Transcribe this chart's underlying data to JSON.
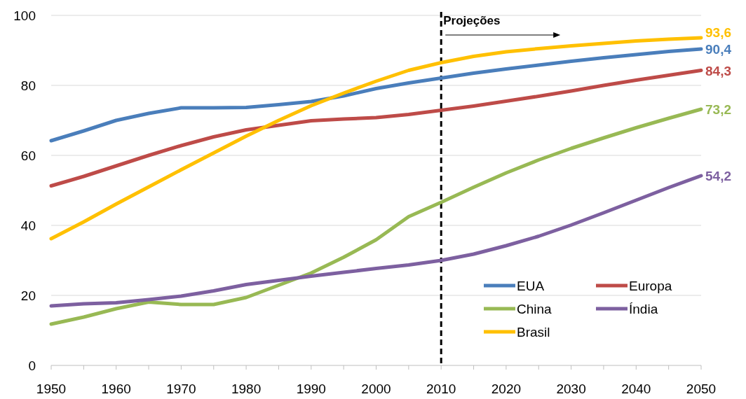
{
  "chart_data": {
    "type": "line",
    "x": [
      1950,
      1955,
      1960,
      1965,
      1970,
      1975,
      1980,
      1985,
      1990,
      1995,
      2000,
      2005,
      2010,
      2015,
      2020,
      2025,
      2030,
      2035,
      2040,
      2045,
      2050
    ],
    "series": [
      {
        "name": "EUA",
        "color": "#4a7ebb",
        "values": [
          64.2,
          67,
          70,
          72,
          73.6,
          73.6,
          73.7,
          74.5,
          75.4,
          77,
          79.1,
          80.7,
          82.1,
          83.5,
          84.7,
          85.8,
          86.9,
          87.9,
          88.8,
          89.7,
          90.4
        ]
      },
      {
        "name": "Europa",
        "color": "#be4b48",
        "values": [
          51.3,
          54,
          57,
          60,
          62.8,
          65.3,
          67.3,
          68.6,
          69.9,
          70.4,
          70.8,
          71.7,
          72.9,
          74.1,
          75.5,
          76.9,
          78.4,
          80,
          81.5,
          82.9,
          84.3
        ]
      },
      {
        "name": "China",
        "color": "#98b954",
        "values": [
          11.8,
          13.8,
          16.2,
          18.1,
          17.4,
          17.4,
          19.4,
          22.9,
          26.4,
          30.9,
          35.9,
          42.5,
          46.6,
          50.9,
          55,
          58.7,
          62,
          65,
          67.9,
          70.6,
          73.2
        ]
      },
      {
        "name": "Índia",
        "color": "#7d60a0",
        "values": [
          17,
          17.6,
          17.9,
          18.8,
          19.8,
          21.3,
          23.1,
          24.3,
          25.5,
          26.6,
          27.7,
          28.7,
          30,
          31.8,
          34.2,
          36.9,
          40.1,
          43.6,
          47.2,
          50.8,
          54.2
        ]
      },
      {
        "name": "Brasil",
        "color": "#ffc000",
        "values": [
          36.2,
          41,
          46.1,
          51,
          55.9,
          60.7,
          65.5,
          70,
          74.2,
          77.8,
          81.2,
          84.3,
          86.5,
          88.3,
          89.6,
          90.5,
          91.3,
          92,
          92.7,
          93.2,
          93.6
        ]
      }
    ],
    "xlim": [
      1950,
      2050
    ],
    "xticks": [
      1950,
      {
        "value": 1955,
        "label": null
      },
      1960,
      {
        "value": 1965,
        "label": null
      },
      1970,
      {
        "value": 1975,
        "label": null
      },
      1980,
      {
        "value": 1985,
        "label": null
      },
      1990,
      {
        "value": 1995,
        "label": null
      },
      2000,
      {
        "value": 2005,
        "label": null
      },
      2010,
      {
        "value": 2015,
        "label": null
      },
      2020,
      {
        "value": 2025,
        "label": null
      },
      2030,
      {
        "value": 2035,
        "label": null
      },
      2040,
      {
        "value": 2045,
        "label": null
      },
      2050
    ],
    "ylim": [
      0,
      100
    ],
    "yticks": [
      0,
      20,
      40,
      60,
      80,
      100
    ],
    "grid": "y",
    "legend": "bottom right",
    "marker": "none",
    "line_style": "solid",
    "ref_lines": [
      {
        "axis": "x",
        "value": 2010,
        "label": "Projeções",
        "color": "#000000",
        "line_style": "dashed"
      }
    ],
    "annotations": [
      "90,4",
      "84,3",
      "73,2",
      "54,2",
      "93,6"
    ]
  }
}
